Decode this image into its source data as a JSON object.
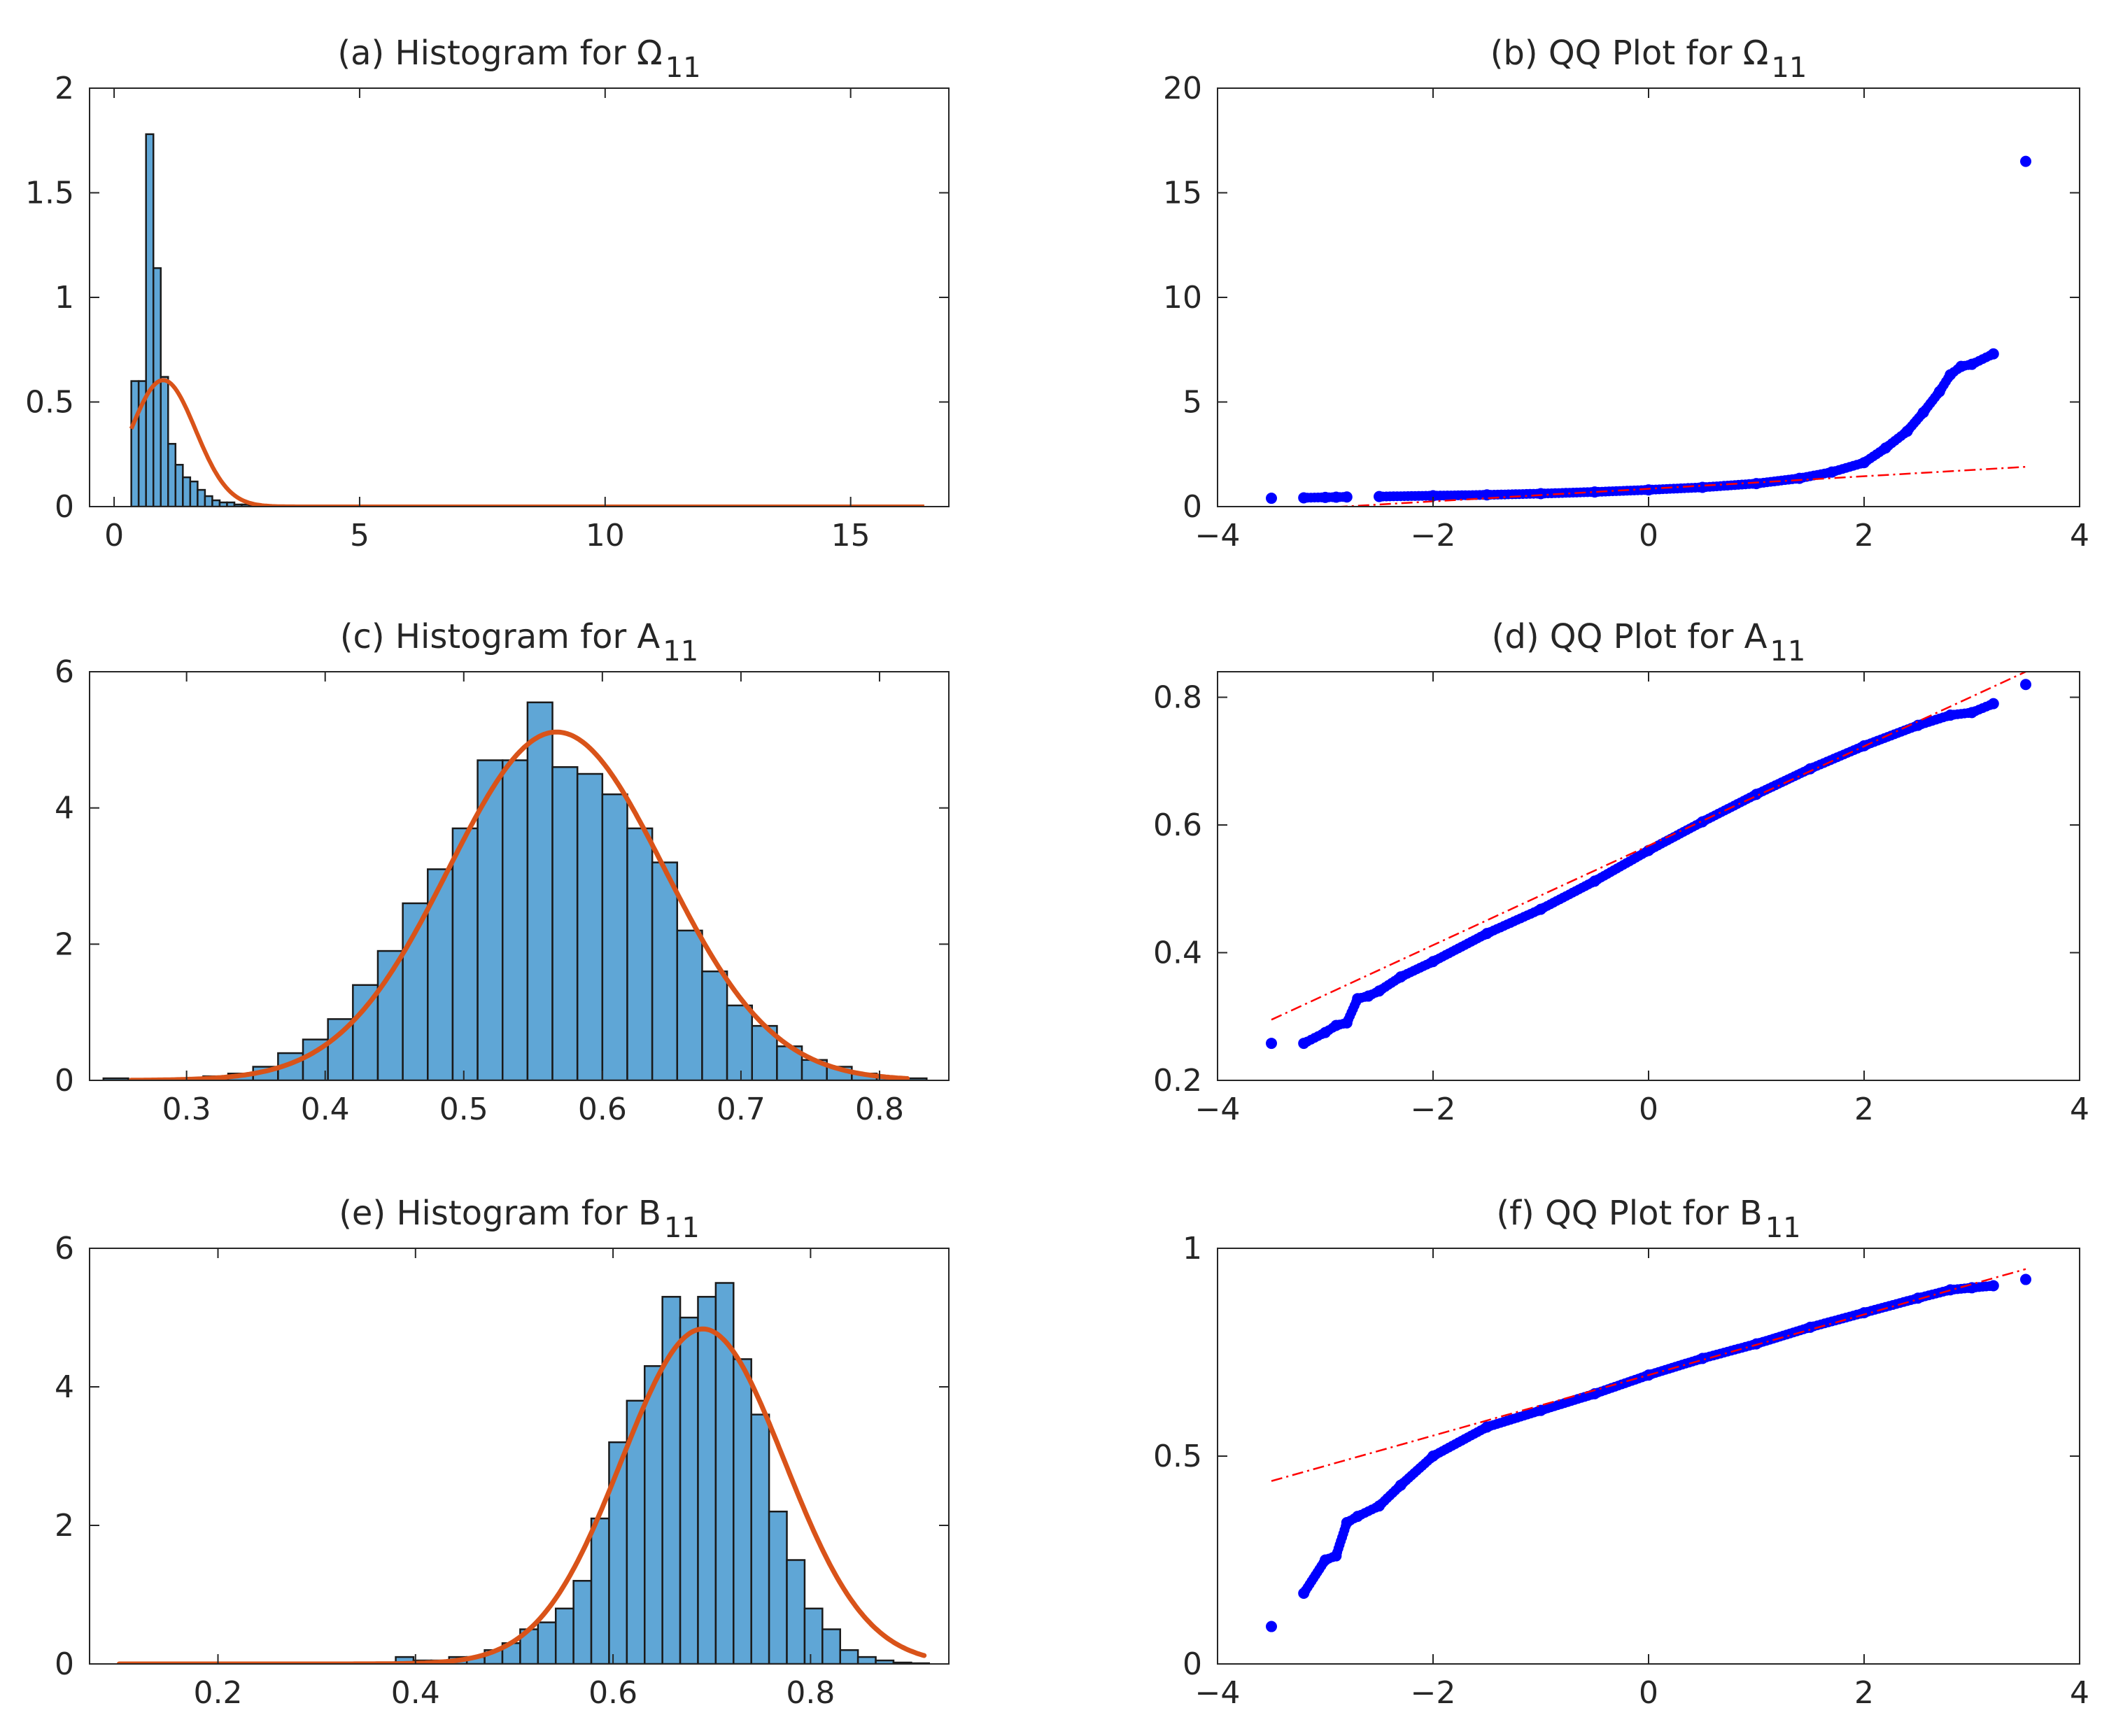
{
  "figure": {
    "panels": [
      "a",
      "b",
      "c",
      "d",
      "e",
      "f"
    ]
  },
  "colors": {
    "bar_fill": "#5fa6d6",
    "bar_edge": "#1a1a1a",
    "pdf_curve": "#d95319",
    "qq_points": "#0000ff",
    "reference_line": "#ff0000",
    "axes": "#262626"
  },
  "chart_data": [
    {
      "id": "a",
      "type": "bar",
      "title": "(a) Histogram for Ω",
      "title_subscript": "11",
      "xlabel": "",
      "ylabel": "",
      "xlim": [
        -0.5,
        17
      ],
      "ylim": [
        0,
        2
      ],
      "xticks": [
        0,
        5,
        10,
        15
      ],
      "yticks": [
        0,
        0.5,
        1,
        1.5,
        2
      ],
      "xtick_labels": [
        "0",
        "5",
        "10",
        "15"
      ],
      "ytick_labels": [
        "0",
        "0.5",
        "1",
        "1.5",
        "2"
      ],
      "grid": false,
      "series": [
        {
          "name": "histogram",
          "bin_edges": [
            0.35,
            0.5,
            0.65,
            0.8,
            0.95,
            1.1,
            1.25,
            1.4,
            1.55,
            1.7,
            1.85,
            2.0,
            2.15,
            2.3,
            2.45,
            2.6,
            2.75,
            2.9,
            3.05
          ],
          "values": [
            0.6,
            0.6,
            1.78,
            1.14,
            0.62,
            0.3,
            0.2,
            0.14,
            0.12,
            0.08,
            0.05,
            0.03,
            0.02,
            0.02,
            0.01,
            0.01,
            0.005,
            0.005
          ]
        },
        {
          "name": "normal fit",
          "type": "line",
          "mu": 1.0,
          "sigma": 0.66,
          "x_range": [
            0.35,
            16.5
          ]
        }
      ]
    },
    {
      "id": "b",
      "type": "scatter",
      "title": "(b) QQ Plot for Ω",
      "title_subscript": "11",
      "xlabel": "",
      "ylabel": "",
      "xlim": [
        -4,
        4
      ],
      "ylim": [
        0,
        20
      ],
      "xticks": [
        -4,
        -2,
        0,
        2,
        4
      ],
      "yticks": [
        0,
        5,
        10,
        15,
        20
      ],
      "xtick_labels": [
        "−4",
        "−2",
        "0",
        "2",
        "4"
      ],
      "ytick_labels": [
        "0",
        "5",
        "10",
        "15",
        "20"
      ],
      "grid": false,
      "series": [
        {
          "name": "quantiles",
          "points": [
            [
              -3.5,
              0.4
            ],
            [
              -3.2,
              0.42
            ],
            [
              -3.0,
              0.44
            ],
            [
              -2.9,
              0.45
            ],
            [
              -2.8,
              0.46
            ],
            [
              -2.5,
              0.48
            ],
            [
              -2.0,
              0.52
            ],
            [
              -1.5,
              0.56
            ],
            [
              -1.0,
              0.62
            ],
            [
              -0.5,
              0.7
            ],
            [
              0.0,
              0.8
            ],
            [
              0.5,
              0.92
            ],
            [
              1.0,
              1.1
            ],
            [
              1.4,
              1.35
            ],
            [
              1.7,
              1.65
            ],
            [
              2.0,
              2.1
            ],
            [
              2.2,
              2.8
            ],
            [
              2.4,
              3.6
            ],
            [
              2.55,
              4.5
            ],
            [
              2.7,
              5.5
            ],
            [
              2.8,
              6.3
            ],
            [
              2.9,
              6.7
            ],
            [
              3.0,
              6.8
            ],
            [
              3.2,
              7.3
            ],
            [
              3.5,
              16.5
            ]
          ]
        },
        {
          "name": "reference line",
          "type": "line",
          "x": [
            -3.5,
            3.5
          ],
          "y": [
            -0.2,
            1.9
          ]
        }
      ]
    },
    {
      "id": "c",
      "type": "bar",
      "title": "(c) Histogram for A",
      "title_subscript": "11",
      "xlabel": "",
      "ylabel": "",
      "xlim": [
        0.23,
        0.85
      ],
      "ylim": [
        0,
        6
      ],
      "xticks": [
        0.3,
        0.4,
        0.5,
        0.6,
        0.7,
        0.8
      ],
      "yticks": [
        0,
        2,
        4,
        6
      ],
      "xtick_labels": [
        "0.3",
        "0.4",
        "0.5",
        "0.6",
        "0.7",
        "0.8"
      ],
      "ytick_labels": [
        "0",
        "2",
        "4",
        "6"
      ],
      "grid": false,
      "series": [
        {
          "name": "histogram",
          "bin_edges": [
            0.24,
            0.258,
            0.276,
            0.294,
            0.312,
            0.33,
            0.348,
            0.366,
            0.384,
            0.402,
            0.42,
            0.438,
            0.456,
            0.474,
            0.492,
            0.51,
            0.528,
            0.546,
            0.564,
            0.582,
            0.6,
            0.618,
            0.636,
            0.654,
            0.672,
            0.69,
            0.708,
            0.726,
            0.744,
            0.762,
            0.78,
            0.798,
            0.816,
            0.834
          ],
          "values": [
            0.03,
            0.0,
            0.02,
            0.03,
            0.06,
            0.1,
            0.2,
            0.4,
            0.6,
            0.9,
            1.4,
            1.9,
            2.6,
            3.1,
            3.7,
            4.7,
            4.7,
            5.55,
            4.6,
            4.5,
            4.2,
            3.7,
            3.2,
            2.2,
            1.6,
            1.1,
            0.8,
            0.5,
            0.3,
            0.2,
            0.1,
            0.05,
            0.03
          ]
        },
        {
          "name": "normal fit",
          "type": "line",
          "mu": 0.567,
          "sigma": 0.078,
          "x_range": [
            0.26,
            0.82
          ]
        }
      ]
    },
    {
      "id": "d",
      "type": "scatter",
      "title": "(d) QQ Plot for A",
      "title_subscript": "11",
      "xlabel": "",
      "ylabel": "",
      "xlim": [
        -4,
        4
      ],
      "ylim": [
        0.2,
        0.84
      ],
      "xticks": [
        -4,
        -2,
        0,
        2,
        4
      ],
      "yticks": [
        0.2,
        0.4,
        0.6,
        0.8
      ],
      "xtick_labels": [
        "−4",
        "−2",
        "0",
        "2",
        "4"
      ],
      "ytick_labels": [
        "0.2",
        "0.4",
        "0.6",
        "0.8"
      ],
      "grid": false,
      "series": [
        {
          "name": "quantiles",
          "points": [
            [
              -3.5,
              0.258
            ],
            [
              -3.2,
              0.258
            ],
            [
              -3.0,
              0.275
            ],
            [
              -2.9,
              0.286
            ],
            [
              -2.8,
              0.29
            ],
            [
              -2.7,
              0.328
            ],
            [
              -2.6,
              0.332
            ],
            [
              -2.5,
              0.34
            ],
            [
              -2.3,
              0.362
            ],
            [
              -2.0,
              0.386
            ],
            [
              -1.5,
              0.43
            ],
            [
              -1.0,
              0.468
            ],
            [
              -0.5,
              0.512
            ],
            [
              0.0,
              0.56
            ],
            [
              0.5,
              0.605
            ],
            [
              1.0,
              0.648
            ],
            [
              1.5,
              0.688
            ],
            [
              2.0,
              0.724
            ],
            [
              2.5,
              0.756
            ],
            [
              2.8,
              0.772
            ],
            [
              3.0,
              0.776
            ],
            [
              3.2,
              0.79
            ],
            [
              3.5,
              0.82
            ]
          ]
        },
        {
          "name": "reference line",
          "type": "line",
          "x": [
            -3.5,
            3.5
          ],
          "y": [
            0.295,
            0.84
          ]
        }
      ]
    },
    {
      "id": "e",
      "type": "bar",
      "title": "(e) Histogram for B",
      "title_subscript": "11",
      "xlabel": "",
      "ylabel": "",
      "xlim": [
        0.07,
        0.94
      ],
      "ylim": [
        0,
        6
      ],
      "xticks": [
        0.2,
        0.4,
        0.6,
        0.8
      ],
      "yticks": [
        0,
        2,
        4,
        6
      ],
      "xtick_labels": [
        "0.2",
        "0.4",
        "0.6",
        "0.8"
      ],
      "ytick_labels": [
        "0",
        "2",
        "4",
        "6"
      ],
      "grid": false,
      "series": [
        {
          "name": "histogram",
          "bin_edges": [
            0.38,
            0.398,
            0.416,
            0.434,
            0.452,
            0.47,
            0.488,
            0.506,
            0.524,
            0.542,
            0.56,
            0.578,
            0.596,
            0.614,
            0.632,
            0.65,
            0.668,
            0.686,
            0.704,
            0.722,
            0.74,
            0.758,
            0.776,
            0.794,
            0.812,
            0.83,
            0.848,
            0.866,
            0.884,
            0.902,
            0.92
          ],
          "values": [
            0.1,
            0.05,
            0.05,
            0.1,
            0.1,
            0.2,
            0.3,
            0.5,
            0.6,
            0.8,
            1.2,
            2.1,
            3.2,
            3.8,
            4.3,
            5.3,
            5.0,
            5.3,
            5.5,
            4.4,
            3.6,
            2.2,
            1.5,
            0.8,
            0.5,
            0.2,
            0.1,
            0.05,
            0.02,
            0.01
          ]
        },
        {
          "name": "normal fit",
          "type": "line",
          "mu": 0.691,
          "sigma": 0.0825,
          "x_range": [
            0.1,
            0.915
          ]
        }
      ]
    },
    {
      "id": "f",
      "type": "scatter",
      "title": "(f) QQ Plot for B",
      "title_subscript": "11",
      "xlabel": "",
      "ylabel": "",
      "xlim": [
        -4,
        4
      ],
      "ylim": [
        0,
        1
      ],
      "xticks": [
        -4,
        -2,
        0,
        2,
        4
      ],
      "yticks": [
        0,
        0.5,
        1
      ],
      "xtick_labels": [
        "−4",
        "−2",
        "0",
        "2",
        "4"
      ],
      "ytick_labels": [
        "0",
        "0.5",
        "1"
      ],
      "grid": false,
      "series": [
        {
          "name": "quantiles",
          "points": [
            [
              -3.5,
              0.09
            ],
            [
              -3.2,
              0.17
            ],
            [
              -3.0,
              0.25
            ],
            [
              -2.9,
              0.26
            ],
            [
              -2.8,
              0.34
            ],
            [
              -2.7,
              0.355
            ],
            [
              -2.5,
              0.38
            ],
            [
              -2.3,
              0.43
            ],
            [
              -2.0,
              0.5
            ],
            [
              -1.5,
              0.57
            ],
            [
              -1.0,
              0.61
            ],
            [
              -0.5,
              0.65
            ],
            [
              0.0,
              0.695
            ],
            [
              0.5,
              0.735
            ],
            [
              1.0,
              0.77
            ],
            [
              1.5,
              0.81
            ],
            [
              2.0,
              0.845
            ],
            [
              2.5,
              0.88
            ],
            [
              2.8,
              0.9
            ],
            [
              3.0,
              0.905
            ],
            [
              3.2,
              0.91
            ],
            [
              3.5,
              0.925
            ]
          ]
        },
        {
          "name": "reference line",
          "type": "line",
          "x": [
            -3.5,
            3.5
          ],
          "y": [
            0.44,
            0.95
          ]
        }
      ]
    }
  ]
}
